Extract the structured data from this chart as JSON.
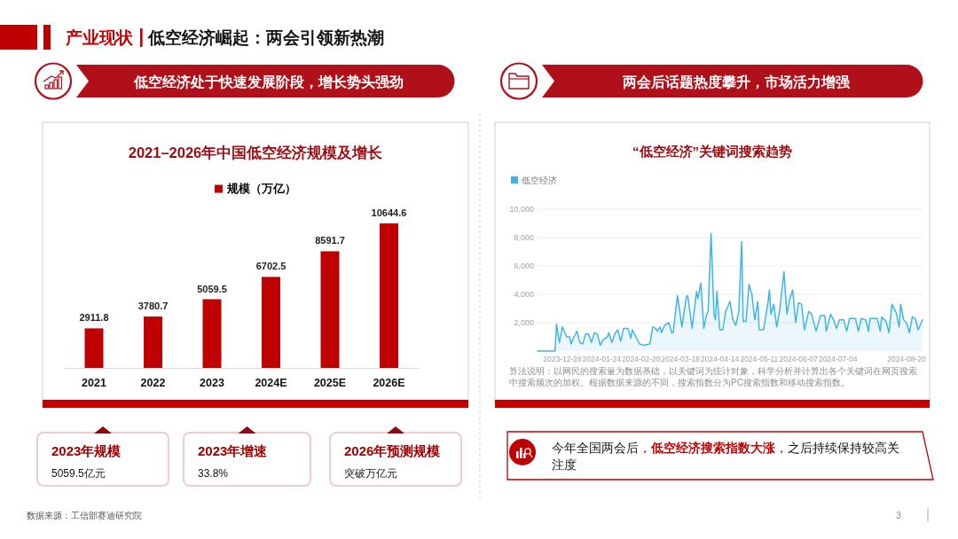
{
  "chart_data": [
    {
      "type": "other",
      "title": "产业现状",
      "subtitle": "低空经济崛起：两会引领新热潮",
      "annotations": [
        "数据来源：工信部赛迪研究院",
        "3"
      ]
    },
    {
      "type": "bar",
      "title": "2021–2026年中国低空经济规模及增长",
      "annotations": [
        "低空经济处于快速发展阶段，增长势头强劲"
      ],
      "categories": [
        "2021",
        "2022",
        "2023",
        "2024E",
        "2025E",
        "2026E"
      ],
      "series": [
        {
          "name": "规模（万亿）",
          "color": "#c00000",
          "values": [
            2911.8,
            3780.7,
            5059.5,
            6702.5,
            8591.7,
            10644.6
          ]
        }
      ],
      "data_labels": true,
      "legend": "top"
    },
    {
      "type": "other",
      "annotations": [
        "2023年规模",
        "5059.5亿元",
        "2023年增速",
        "33.8%",
        "2026年预测规模",
        "突破万亿元"
      ]
    },
    {
      "type": "area",
      "title": "“低空经济”关键词搜索趋势",
      "annotations": [
        "两会后话题热度攀升，市场活力增强",
        "算法说明：以网民的搜索量为数据基础，以关键词为统计对象，科学分析并计算出各个关键词在网页搜索中搜索频次的加权。根据数据来源的不同，搜索指数分为PC搜索指数和移动搜索指数。",
        "今年全国两会后，**低空经济搜索指数大涨**，之后持续保持较高关注度"
      ],
      "x": [
        "2023-12-11",
        "2023-12-23",
        "2023-12-24",
        "2023-12-26",
        "2023-12-28",
        "2023-12-31",
        "2024-01-02",
        "2024-01-03",
        "2024-01-05",
        "2024-01-07",
        "2024-01-09",
        "2024-01-11",
        "2024-01-13",
        "2024-01-15",
        "2024-01-17",
        "2024-01-19",
        "2024-01-21",
        "2024-01-23",
        "2024-01-25",
        "2024-01-28",
        "2024-01-29",
        "2024-01-31",
        "2024-02-02",
        "2024-02-04",
        "2024-02-06",
        "2024-02-08",
        "2024-02-11",
        "2024-02-13",
        "2024-02-14",
        "2024-02-17",
        "2024-02-19",
        "2024-02-22",
        "2024-02-26",
        "2024-02-28",
        "2024-03-01",
        "2024-03-02",
        "2024-03-04",
        "2024-03-05",
        "2024-03-07",
        "2024-03-10",
        "2024-03-12",
        "2024-03-13",
        "2024-03-15",
        "2024-03-16",
        "2024-03-19",
        "2024-03-22",
        "2024-03-23",
        "2024-03-26",
        "2024-03-29",
        "2024-03-30",
        "2024-04-01",
        "2024-04-03",
        "2024-04-05",
        "2024-04-06",
        "2024-04-08",
        "2024-04-10",
        "2024-04-11",
        "2024-04-12",
        "2024-04-14",
        "2024-04-16",
        "2024-04-18",
        "2024-04-21",
        "2024-04-23",
        "2024-04-25",
        "2024-04-27",
        "2024-04-29",
        "2024-04-30",
        "2024-05-02",
        "2024-05-04",
        "2024-05-06",
        "2024-05-08",
        "2024-05-10",
        "2024-05-11",
        "2024-05-14",
        "2024-05-17",
        "2024-05-18",
        "2024-05-19",
        "2024-05-21",
        "2024-05-23",
        "2024-05-25",
        "2024-05-28",
        "2024-05-30",
        "2024-06-01",
        "2024-06-03",
        "2024-06-05",
        "2024-06-07",
        "2024-06-09",
        "2024-06-11",
        "2024-06-14",
        "2024-06-16",
        "2024-06-19",
        "2024-06-22",
        "2024-06-25",
        "2024-06-26",
        "2024-06-29",
        "2024-07-01",
        "2024-07-03",
        "2024-07-05",
        "2024-07-08",
        "2024-07-10",
        "2024-07-12",
        "2024-07-16",
        "2024-07-18",
        "2024-07-20",
        "2024-07-23",
        "2024-07-25",
        "2024-07-26",
        "2024-07-31",
        "2024-08-02",
        "2024-08-03",
        "2024-08-06",
        "2024-08-08",
        "2024-08-10",
        "2024-08-13",
        "2024-08-15",
        "2024-08-16",
        "2024-08-18",
        "2024-08-20",
        "2024-08-22",
        "2024-08-24",
        "2024-08-26",
        "2024-08-28",
        "2024-08-31"
      ],
      "series": [
        {
          "name": "低空经济",
          "color": "#3fb5e5",
          "values": [
            0,
            0,
            1900,
            600,
            1700,
            1000,
            1000,
            500,
            1000,
            1400,
            600,
            500,
            1200,
            1200,
            600,
            1300,
            1200,
            400,
            800,
            1000,
            1300,
            600,
            1200,
            1500,
            700,
            1600,
            1600,
            900,
            1500,
            900,
            500,
            400,
            500,
            1700,
            1600,
            1400,
            1700,
            1300,
            1800,
            2000,
            1300,
            1300,
            3100,
            3900,
            1700,
            3800,
            3900,
            1600,
            4200,
            3700,
            4800,
            1600,
            2600,
            2800,
            8300,
            2600,
            2200,
            4200,
            1500,
            1500,
            2800,
            3500,
            2200,
            1800,
            2800,
            7700,
            2100,
            2100,
            4700,
            4000,
            2200,
            3500,
            1500,
            1500,
            3400,
            4300,
            2600,
            3300,
            1700,
            2800,
            5600,
            2600,
            3700,
            4300,
            2000,
            3400,
            3300,
            1500,
            2800,
            2600,
            1400,
            2500,
            2500,
            1400,
            2600,
            2200,
            1600,
            2200,
            2200,
            1400,
            2300,
            2300,
            1400,
            2300,
            2200,
            1400,
            2300,
            2300,
            1400,
            2400,
            2100,
            1300,
            3300,
            2700,
            1700,
            3300,
            2200,
            2000,
            1300,
            2400,
            2300,
            1500,
            2200
          ]
        }
      ],
      "xlim": [
        "2023-12-11",
        "2024-08-31"
      ],
      "ylim": [
        0,
        10000
      ],
      "xticks": [
        "2023-12-28",
        "2024-01-24",
        "2024-02-20",
        "2024-03-18",
        "2024-04-14",
        "2024-05-11",
        "2024-06-07",
        "2024-07-04",
        "2024-08-20"
      ],
      "yticks": [
        {
          "value": 2000,
          "label": "2,000"
        },
        {
          "value": 4000,
          "label": "4,000"
        },
        {
          "value": 6000,
          "label": "6,000"
        },
        {
          "value": 8000,
          "label": "8,000"
        },
        {
          "value": 10000,
          "label": "10,000"
        }
      ],
      "grid": "y",
      "legend": "top left"
    }
  ]
}
